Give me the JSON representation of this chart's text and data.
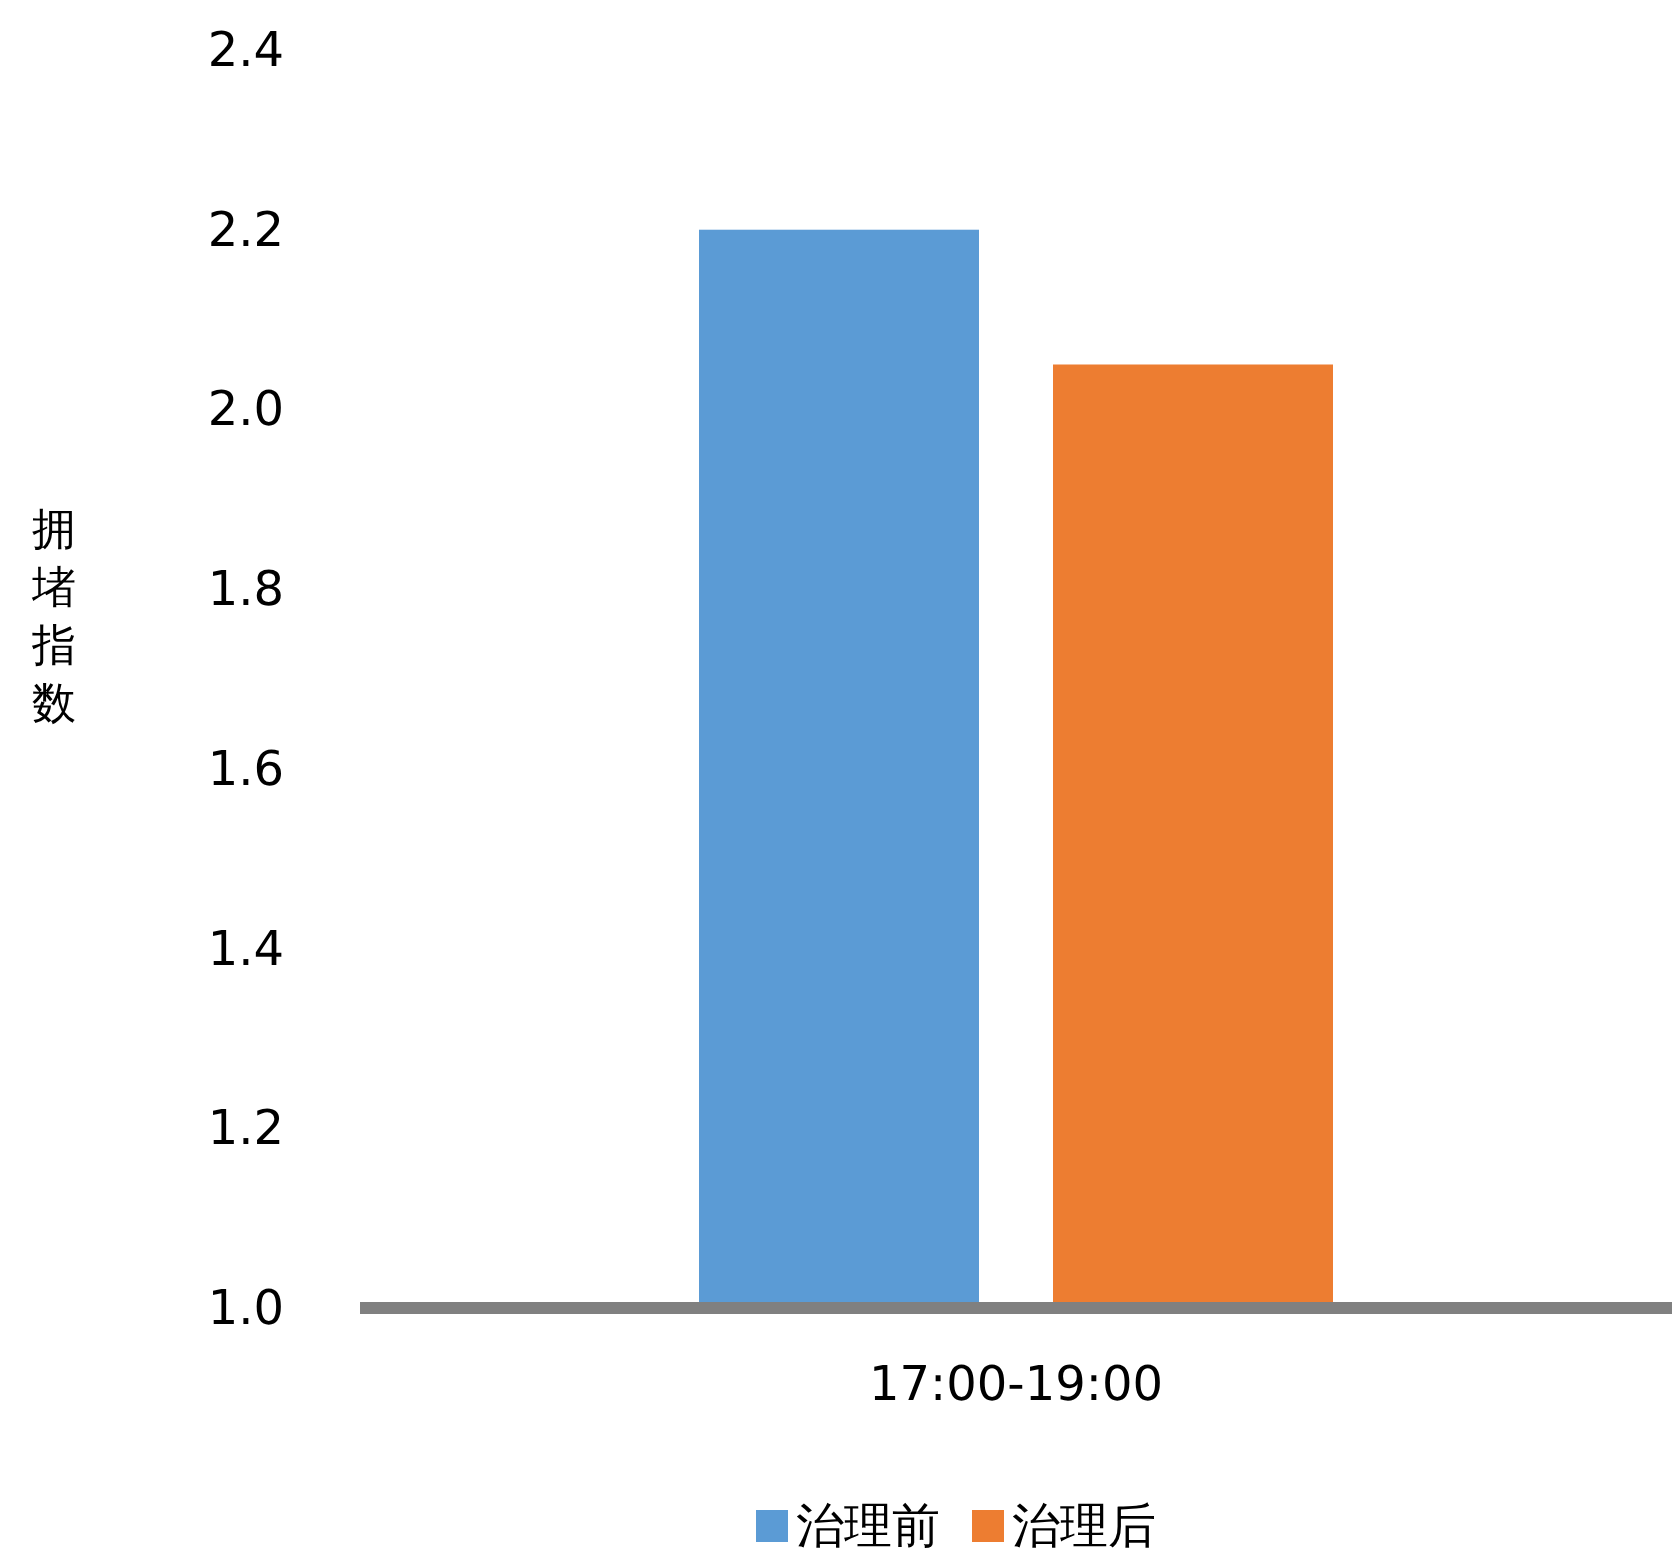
{
  "chart_data": {
    "type": "bar",
    "ylabel": "拥堵指数",
    "categories": [
      "17:00-19:00"
    ],
    "series": [
      {
        "name": "治理前",
        "color": "#5b9bd5",
        "values": [
          2.2
        ]
      },
      {
        "name": "治理后",
        "color": "#ed7d31",
        "values": [
          2.05
        ]
      }
    ],
    "ylim": [
      1.0,
      2.4
    ],
    "yticks": [
      {
        "value": 1.0,
        "label": "1.0"
      },
      {
        "value": 1.2,
        "label": "1.2"
      },
      {
        "value": 1.4,
        "label": "1.4"
      },
      {
        "value": 1.6,
        "label": "1.6"
      },
      {
        "value": 1.8,
        "label": "1.8"
      },
      {
        "value": 2.0,
        "label": "2.0"
      },
      {
        "value": 2.2,
        "label": "2.2"
      },
      {
        "value": 2.4,
        "label": "2.4"
      }
    ],
    "legend": "bottom",
    "grid": false
  }
}
